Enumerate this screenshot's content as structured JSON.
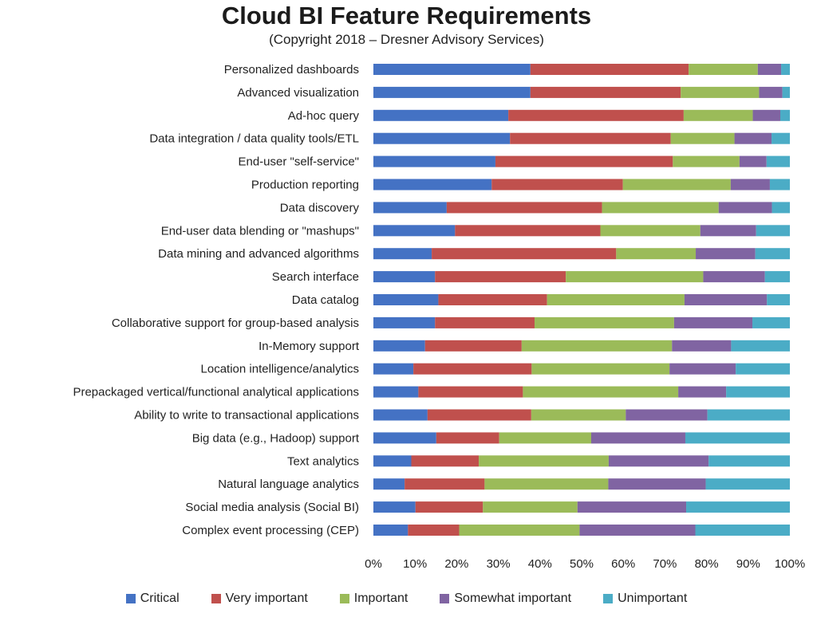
{
  "chart_data": {
    "type": "bar",
    "orientation": "horizontal",
    "stacked": true,
    "normalized": true,
    "title": "Cloud BI Feature Requirements",
    "subtitle": "(Copyright 2018 – Dresner Advisory Services)",
    "categories": [
      "Personalized dashboards",
      "Advanced visualization",
      "Ad-hoc query",
      "Data integration / data quality tools/ETL",
      "End-user \"self-service\"",
      "Production reporting",
      "Data discovery",
      "End-user data blending or \"mashups\"",
      "Data mining and advanced algorithms",
      "Search interface",
      "Data catalog",
      "Collaborative support for group-based analysis",
      "In-Memory support",
      "Location intelligence/analytics",
      "Prepackaged vertical/functional analytical applications",
      "Ability to write to transactional applications",
      "Big data (e.g., Hadoop) support",
      "Text analytics",
      "Natural language analytics",
      "Social media analysis (Social BI)",
      "Complex event processing (CEP)"
    ],
    "series": [
      {
        "name": "Critical",
        "color": "#4472C4",
        "values": [
          37.7,
          37.7,
          32.4,
          32.8,
          29.3,
          28.4,
          17.6,
          19.6,
          14.0,
          14.8,
          15.6,
          14.8,
          12.4,
          9.6,
          10.8,
          13.0,
          15.1,
          9.1,
          7.5,
          10.1,
          8.3
        ]
      },
      {
        "name": "Very important",
        "color": "#C0504D",
        "values": [
          38.0,
          36.1,
          42.1,
          38.6,
          42.6,
          31.5,
          37.3,
          34.9,
          44.3,
          31.4,
          26.1,
          23.9,
          23.2,
          28.4,
          25.1,
          24.9,
          15.1,
          16.2,
          19.2,
          16.2,
          12.3
        ]
      },
      {
        "name": "Important",
        "color": "#9BBB59",
        "values": [
          16.6,
          18.8,
          16.6,
          15.3,
          16.0,
          25.9,
          28.0,
          24.0,
          19.1,
          33.0,
          33.0,
          33.5,
          36.1,
          33.1,
          37.3,
          22.7,
          22.1,
          31.2,
          29.7,
          22.7,
          28.9
        ]
      },
      {
        "name": "Somewhat important",
        "color": "#8064A2",
        "values": [
          5.6,
          5.6,
          6.6,
          8.9,
          6.5,
          9.4,
          12.8,
          13.4,
          14.3,
          14.8,
          19.8,
          18.8,
          14.2,
          15.9,
          11.5,
          19.6,
          22.6,
          24.0,
          23.4,
          26.1,
          27.8
        ]
      },
      {
        "name": "Unimportant",
        "color": "#4BACC6",
        "values": [
          2.1,
          1.8,
          2.3,
          4.4,
          5.6,
          4.8,
          4.3,
          8.1,
          8.3,
          6.0,
          5.5,
          9.0,
          14.1,
          13.0,
          15.3,
          19.8,
          25.1,
          19.5,
          20.2,
          24.9,
          22.7
        ]
      }
    ],
    "x_ticks": [
      "0%",
      "10%",
      "20%",
      "30%",
      "40%",
      "50%",
      "60%",
      "70%",
      "80%",
      "90%",
      "100%"
    ],
    "xlim": [
      0,
      100
    ],
    "grid": false,
    "legend_position": "bottom"
  }
}
